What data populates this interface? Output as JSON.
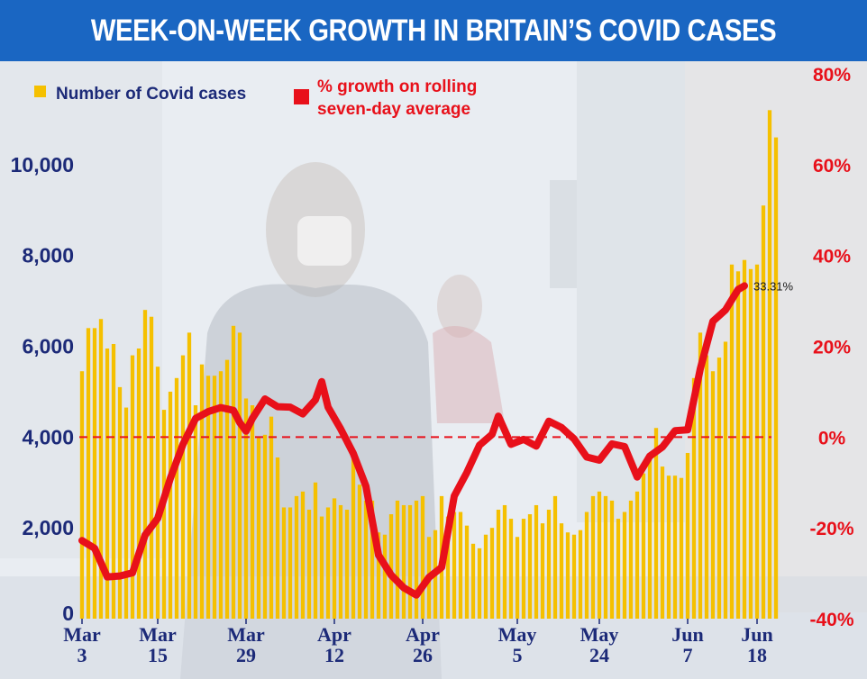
{
  "header": {
    "title": "WEEK-ON-WEEK GROWTH IN BRITAIN’S COVID CASES"
  },
  "colors": {
    "banner": "#1a66c2",
    "bars": "#f5c000",
    "line": "#e8101a",
    "axis_left": "#1c2a78",
    "axis_right": "#e8101a"
  },
  "chart_data": {
    "type": "bar+line",
    "title": "WEEK-ON-WEEK GROWTH IN BRITAIN’S COVID CASES",
    "legend": [
      {
        "label": "Number of Covid cases",
        "color": "#f5c000",
        "marker": "square"
      },
      {
        "label_lines": [
          "% growth on rolling",
          "seven-day average"
        ],
        "color": "#e8101a",
        "marker": "square"
      }
    ],
    "y_left": {
      "min": 0,
      "max": 12000,
      "ticks": [
        0,
        2000,
        4000,
        6000,
        8000,
        10000
      ],
      "tick_labels": [
        "0",
        "2,000",
        "4,000",
        "6,000",
        "8,000",
        "10,000"
      ]
    },
    "y_right": {
      "min": -40,
      "max": 80,
      "ticks": [
        -40,
        -20,
        0,
        20,
        40,
        60,
        80
      ],
      "tick_labels": [
        "-40%",
        "-20%",
        "0%",
        "20%",
        "40%",
        "60%",
        "80%"
      ]
    },
    "x_ticks": [
      {
        "label": [
          "Mar",
          "3"
        ],
        "index": 0
      },
      {
        "label": [
          "Mar",
          "15"
        ],
        "index": 12
      },
      {
        "label": [
          "Mar",
          "29"
        ],
        "index": 26
      },
      {
        "label": [
          "Apr",
          "12"
        ],
        "index": 40
      },
      {
        "label": [
          "Apr",
          "26"
        ],
        "index": 54
      },
      {
        "label": [
          "May",
          "5"
        ],
        "index": 69
      },
      {
        "label": [
          "May",
          "24"
        ],
        "index": 82
      },
      {
        "label": [
          "Jun",
          "7"
        ],
        "index": 96
      },
      {
        "label": [
          "Jun",
          "18"
        ],
        "index": 107
      }
    ],
    "bar_values": [
      5450,
      6400,
      6400,
      6600,
      5950,
      6050,
      5100,
      4650,
      5800,
      5950,
      6800,
      6650,
      5550,
      4600,
      5000,
      5300,
      5800,
      6300,
      4700,
      5600,
      5350,
      5350,
      5450,
      5700,
      6450,
      6300,
      4850,
      4700,
      4000,
      4050,
      4450,
      3550,
      2450,
      2450,
      2700,
      2800,
      2400,
      3000,
      2250,
      2450,
      2650,
      2500,
      2400,
      3550,
      2950,
      2600,
      2600,
      1900,
      1850,
      2300,
      2600,
      2500,
      2500,
      2600,
      2700,
      1800,
      1950,
      2700,
      2250,
      2350,
      2350,
      2050,
      1650,
      1550,
      1850,
      2000,
      2400,
      2500,
      2200,
      1800,
      2200,
      2300,
      2500,
      2100,
      2400,
      2700,
      2100,
      1900,
      1850,
      1950,
      2350,
      2700,
      2800,
      2700,
      2600,
      2200,
      2350,
      2600,
      2800,
      3200,
      3500,
      4200,
      3350,
      3150,
      3150,
      3100,
      3650,
      5300,
      6300,
      5800,
      5450,
      5750,
      6100,
      7800,
      7650,
      7900,
      7700,
      7800,
      9100,
      11200,
      10600
    ],
    "growth_series": [
      [
        0,
        -22.8
      ],
      [
        2,
        -24.5
      ],
      [
        4,
        -30.8
      ],
      [
        6,
        -30.6
      ],
      [
        8,
        -29.9
      ],
      [
        10,
        -21.6
      ],
      [
        12,
        -17.9
      ],
      [
        14,
        -9.1
      ],
      [
        16,
        -1.6
      ],
      [
        18,
        4.1
      ],
      [
        20,
        5.6
      ],
      [
        22,
        6.5
      ],
      [
        24,
        5.9
      ],
      [
        25,
        3.2
      ],
      [
        26,
        1.3
      ],
      [
        27,
        4.1
      ],
      [
        29,
        8.4
      ],
      [
        31,
        6.7
      ],
      [
        33,
        6.6
      ],
      [
        35,
        5.1
      ],
      [
        37,
        8.2
      ],
      [
        38,
        12.2
      ],
      [
        39,
        6.6
      ],
      [
        41,
        1.8
      ],
      [
        43,
        -3.6
      ],
      [
        45,
        -10.8
      ],
      [
        47,
        -26.0
      ],
      [
        49,
        -30.4
      ],
      [
        51,
        -33.2
      ],
      [
        53,
        -34.8
      ],
      [
        55,
        -30.9
      ],
      [
        57,
        -28.7
      ],
      [
        59,
        -13.0
      ],
      [
        61,
        -7.8
      ],
      [
        63,
        -1.8
      ],
      [
        65,
        0.6
      ],
      [
        66,
        4.6
      ],
      [
        68,
        -1.6
      ],
      [
        70,
        -0.5
      ],
      [
        72,
        -2.0
      ],
      [
        74,
        3.5
      ],
      [
        76,
        2.1
      ],
      [
        78,
        -0.4
      ],
      [
        80,
        -4.4
      ],
      [
        82,
        -5.1
      ],
      [
        84,
        -1.5
      ],
      [
        86,
        -2.1
      ],
      [
        88,
        -8.8
      ],
      [
        90,
        -4.2
      ],
      [
        92,
        -2.2
      ],
      [
        94,
        1.4
      ],
      [
        96,
        1.6
      ],
      [
        98,
        15.0
      ],
      [
        100,
        25.5
      ],
      [
        102,
        28.0
      ],
      [
        104,
        32.5
      ],
      [
        105,
        33.31
      ]
    ],
    "end_label": "33.31%"
  }
}
